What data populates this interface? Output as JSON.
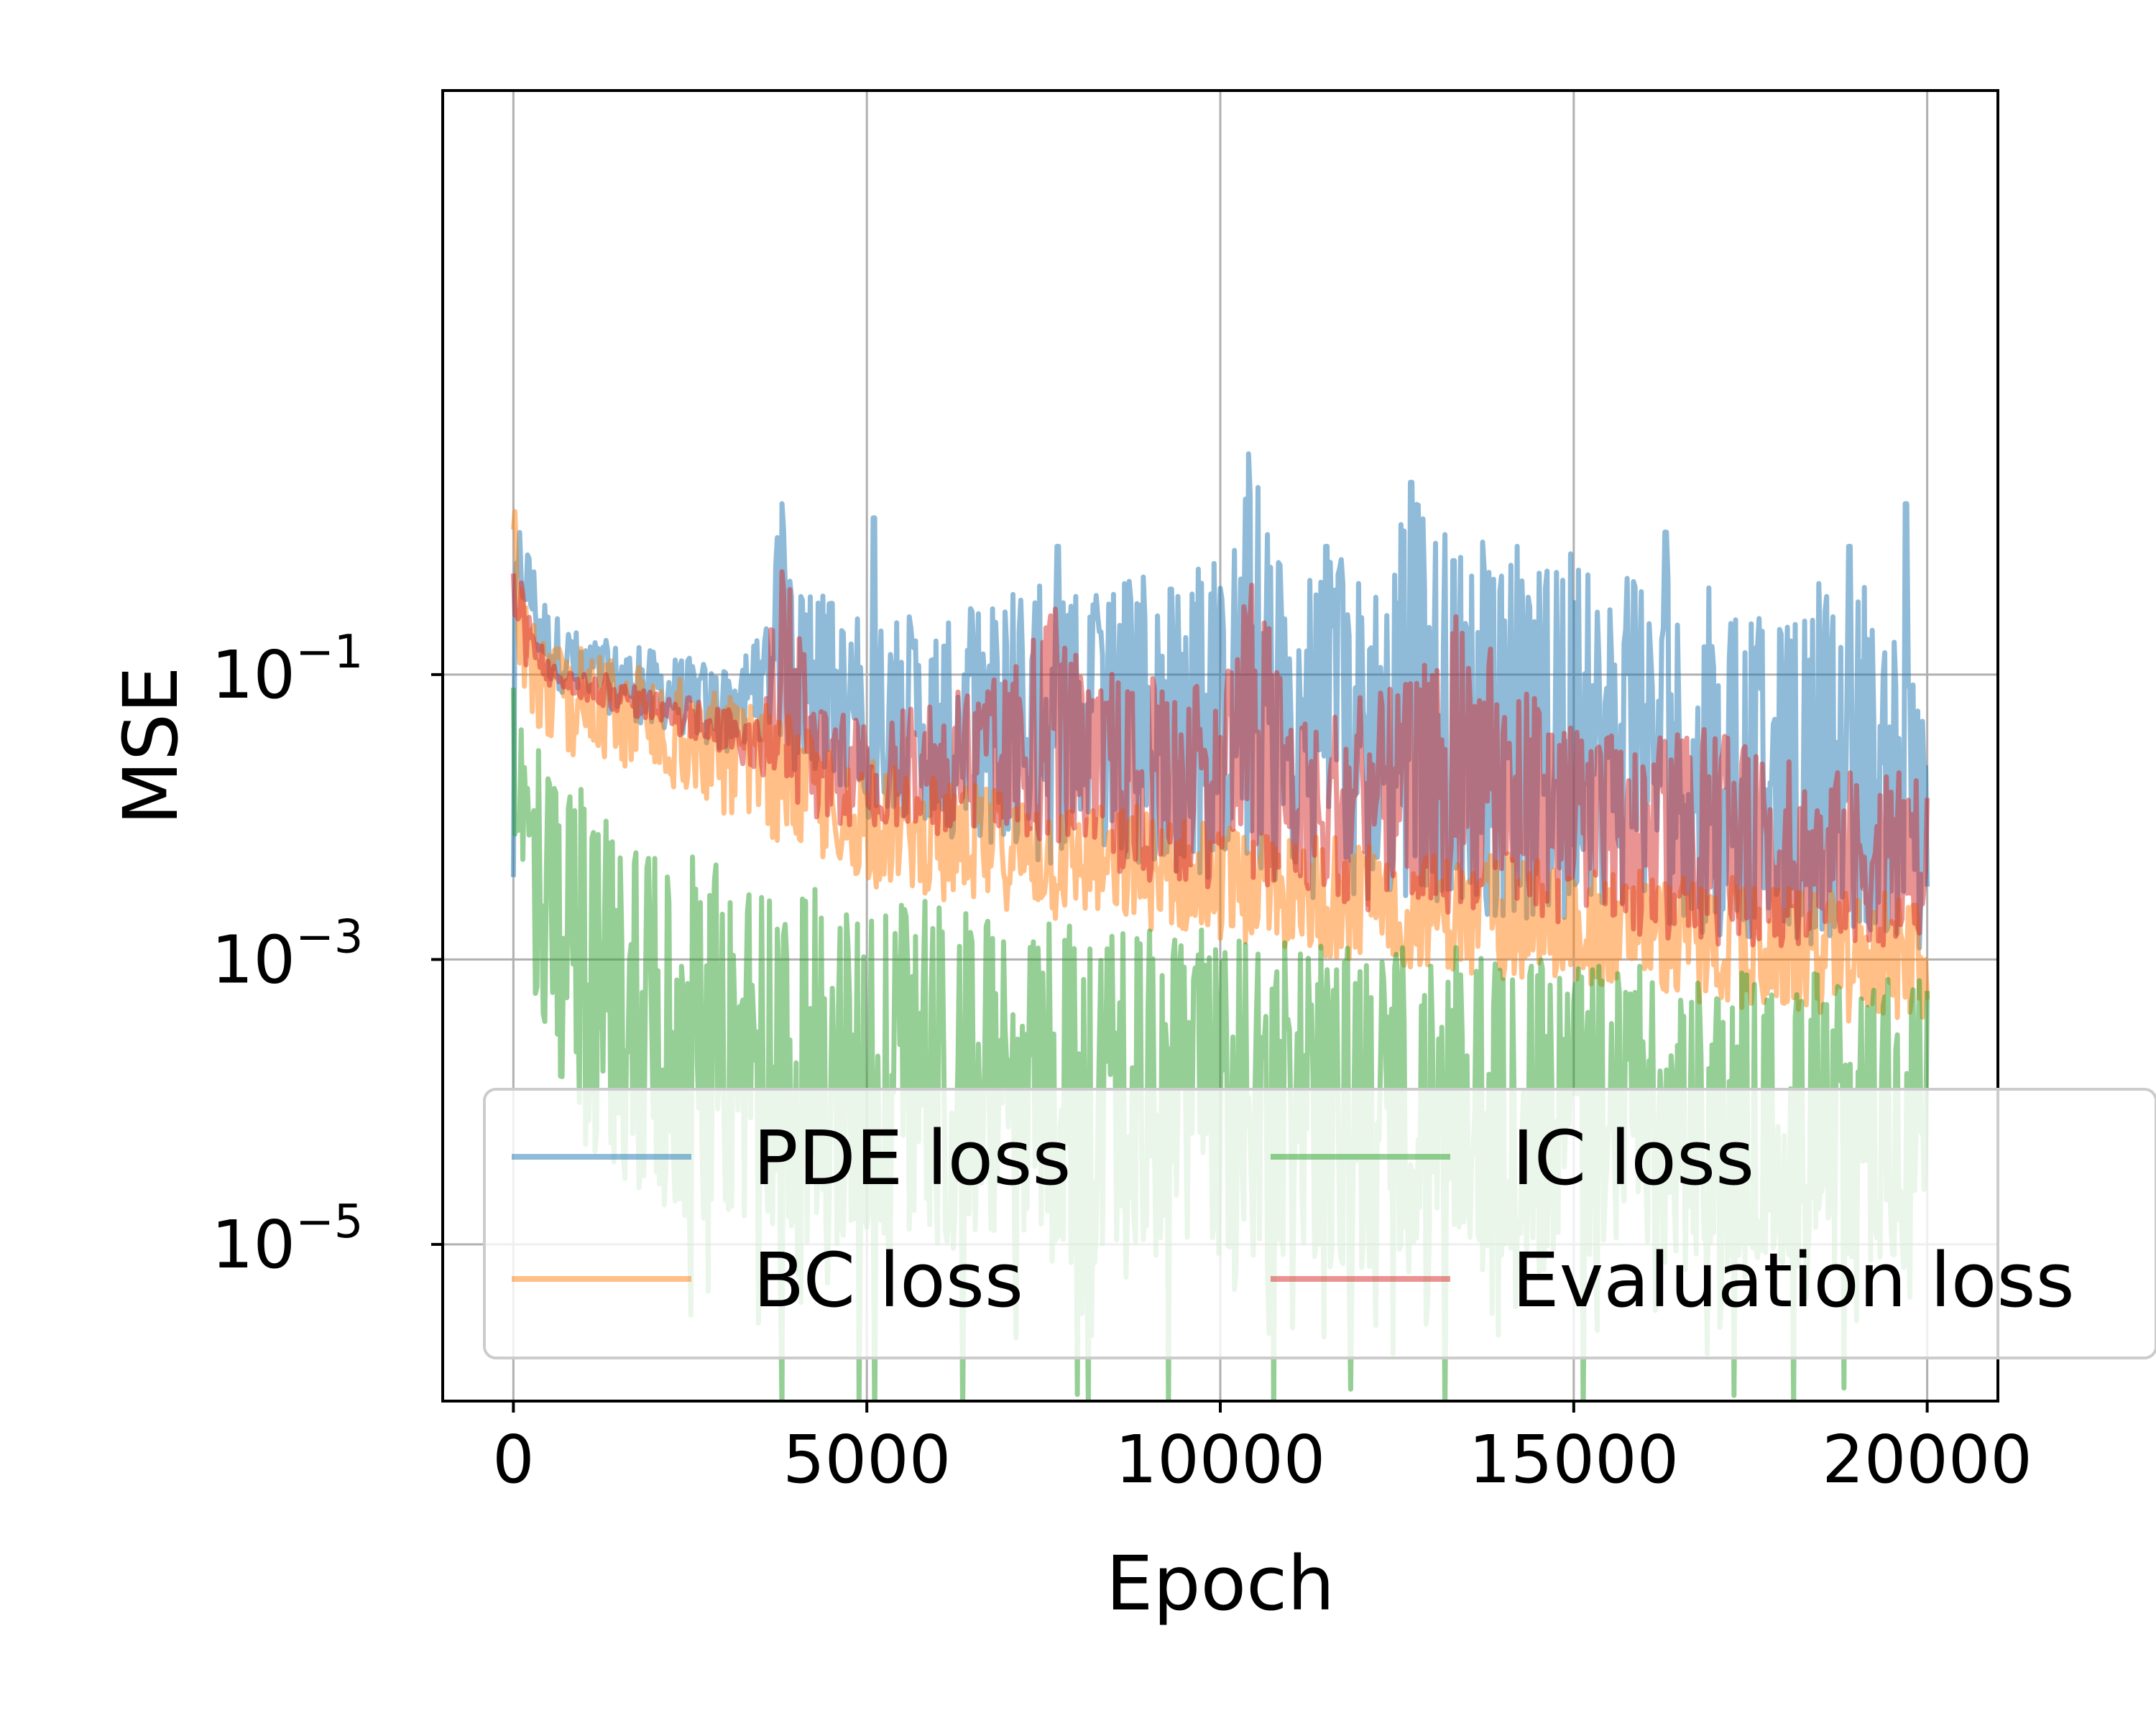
{
  "chart_data": {
    "type": "line",
    "title": "",
    "xlabel": "Epoch",
    "ylabel": "MSE",
    "xlim": [
      -1000,
      21000
    ],
    "ylim_log10": [
      -6.1,
      3.1
    ],
    "y_scale": "log",
    "grid": true,
    "legend": {
      "placement": "lower-center",
      "columns": 2
    },
    "x_ticks": [
      {
        "value": 0,
        "label": "0"
      },
      {
        "value": 5000,
        "label": "5000"
      },
      {
        "value": 10000,
        "label": "10000"
      },
      {
        "value": 15000,
        "label": "15000"
      },
      {
        "value": 20000,
        "label": "20000"
      }
    ],
    "y_ticks": [
      {
        "exponent": -1,
        "base": "10",
        "sup": "−1"
      },
      {
        "exponent": -3,
        "base": "10",
        "sup": "−3"
      },
      {
        "exponent": -5,
        "base": "10",
        "sup": "−5"
      }
    ],
    "series": [
      {
        "name": "PDE loss",
        "color": "#1f77b4",
        "x": [
          0,
          50,
          500,
          1000,
          2000,
          3000,
          3500,
          3800,
          4000,
          5000,
          6000,
          7000,
          8000,
          9000,
          10000,
          10400,
          11000,
          12000,
          13000,
          14000,
          15000,
          16000,
          17000,
          18000,
          19000,
          20000
        ],
        "low": [
          -3.2,
          -0.5,
          -1.1,
          -1.25,
          -1.4,
          -1.55,
          -1.5,
          -1.6,
          -1.7,
          -2.0,
          -2.15,
          -2.3,
          -2.35,
          -2.4,
          -2.45,
          -2.5,
          -2.55,
          -2.6,
          -2.65,
          -2.7,
          -2.75,
          -2.8,
          -2.85,
          -2.9,
          -2.95,
          -3.0
        ],
        "high": [
          -0.8,
          0.2,
          -0.5,
          -0.7,
          -0.8,
          -0.9,
          -0.7,
          0.2,
          -0.4,
          -0.5,
          -0.6,
          -0.3,
          -0.4,
          -0.3,
          -0.2,
          0.5,
          -0.3,
          -0.1,
          0.3,
          -0.2,
          -0.1,
          -0.3,
          -0.4,
          -0.5,
          -0.2,
          -1.2
        ],
        "spikes": [
          [
            3400,
            -0.8
          ],
          [
            3800,
            0.2
          ],
          [
            4500,
            -0.5
          ],
          [
            5100,
            0.1
          ],
          [
            6100,
            -0.8
          ],
          [
            7700,
            -0.1
          ],
          [
            8300,
            -0.7
          ],
          [
            9300,
            -0.4
          ],
          [
            10400,
            0.55
          ],
          [
            11500,
            -0.1
          ],
          [
            12000,
            -0.6
          ],
          [
            12700,
            0.35
          ],
          [
            13300,
            -0.2
          ],
          [
            14200,
            -0.1
          ],
          [
            15200,
            -0.3
          ],
          [
            16300,
            0.0
          ],
          [
            17200,
            -0.9
          ],
          [
            17600,
            -0.8
          ],
          [
            18900,
            -0.1
          ],
          [
            19700,
            0.2
          ]
        ]
      },
      {
        "name": "BC loss",
        "color": "#ff7f0e",
        "x": [
          0,
          100,
          500,
          1000,
          2000,
          3000,
          4000,
          5000,
          6000,
          7000,
          8000,
          9000,
          10000,
          11000,
          12000,
          13000,
          14000,
          15000,
          16000,
          17000,
          18000,
          19000,
          20000
        ],
        "low": [
          -1.3,
          -1.2,
          -1.55,
          -1.65,
          -1.75,
          -2.0,
          -2.3,
          -2.5,
          -2.6,
          -2.7,
          -2.75,
          -2.85,
          -2.9,
          -3.0,
          -3.05,
          -3.1,
          -3.15,
          -3.2,
          -3.25,
          -3.35,
          -3.4,
          -3.45,
          -3.5
        ],
        "high": [
          0.3,
          -0.3,
          -0.65,
          -0.8,
          -0.95,
          -1.1,
          -1.3,
          -1.6,
          -1.7,
          -1.75,
          -1.85,
          -1.9,
          -2.0,
          -2.1,
          -2.15,
          -2.2,
          -2.25,
          -2.3,
          -2.35,
          -2.4,
          -2.45,
          -2.5,
          -2.55
        ]
      },
      {
        "name": "IC loss",
        "color": "#2ca02c",
        "x": [
          0,
          50,
          200,
          500,
          1000,
          1500,
          2000,
          3000,
          4000,
          5000,
          6000,
          7000,
          8000,
          9000,
          10000,
          11000,
          12000,
          13000,
          14000,
          15000,
          16000,
          17000,
          18000,
          19000,
          20000
        ],
        "low": [
          -2.0,
          -2.5,
          -3.0,
          -3.8,
          -4.3,
          -4.6,
          -4.75,
          -4.9,
          -5.0,
          -5.05,
          -5.1,
          -5.1,
          -5.15,
          -5.15,
          -5.2,
          -5.2,
          -5.2,
          -5.2,
          -5.2,
          -5.2,
          -5.2,
          -5.2,
          -5.2,
          -5.2,
          -5.2
        ],
        "high": [
          -0.8,
          -1.0,
          -1.3,
          -1.6,
          -1.8,
          -2.0,
          -2.2,
          -2.35,
          -2.45,
          -2.55,
          -2.6,
          -2.65,
          -2.7,
          -2.75,
          -2.8,
          -2.85,
          -2.9,
          -2.9,
          -2.95,
          -3.0,
          -3.0,
          -3.05,
          -3.05,
          -3.1,
          -3.1
        ],
        "floor_low": [
          -5.2,
          -5.5,
          -6.0
        ]
      },
      {
        "name": "Evaluation loss",
        "color": "#d62728",
        "x": [
          0,
          100,
          500,
          1000,
          2000,
          3000,
          3500,
          3800,
          4200,
          5000,
          6000,
          7000,
          7700,
          8000,
          9000,
          10000,
          10500,
          11000,
          12000,
          13000,
          13300,
          14000,
          15000,
          16000,
          17000,
          18000,
          19000,
          20000
        ],
        "low": [
          -0.6,
          -0.9,
          -1.1,
          -1.2,
          -1.35,
          -1.6,
          -1.7,
          -1.8,
          -2.0,
          -2.1,
          -2.15,
          -2.2,
          -2.3,
          -2.35,
          -2.45,
          -2.5,
          -2.5,
          -2.6,
          -2.65,
          -2.7,
          -2.75,
          -2.75,
          -2.8,
          -2.85,
          -2.9,
          -2.95,
          -2.95,
          -3.0
        ],
        "high": [
          0.1,
          -0.3,
          -0.9,
          -1.0,
          -1.1,
          -1.2,
          -1.3,
          0.1,
          -1.1,
          -1.3,
          -1.2,
          -0.9,
          -0.4,
          -0.9,
          -1.0,
          -1.1,
          -0.1,
          -1.2,
          -1.1,
          -0.9,
          -0.4,
          -0.9,
          -1.3,
          -1.4,
          -1.3,
          -1.6,
          -1.6,
          -1.7
        ]
      }
    ]
  }
}
